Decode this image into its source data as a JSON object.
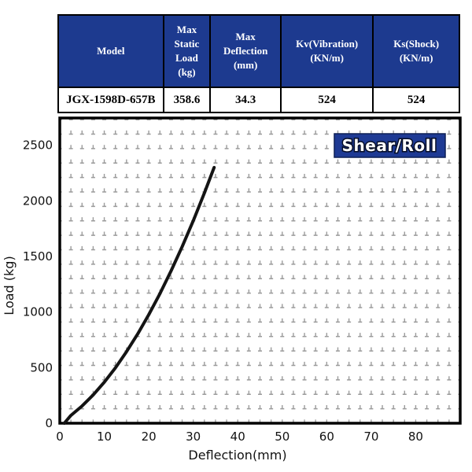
{
  "table": {
    "headers": [
      "Model",
      "Max\nStatic\nLoad\n(kg)",
      "Max\nDeflection\n(mm)",
      "Kv(Vibration)\n(KN/m)",
      "Ks(Shock)\n(KN/m)"
    ],
    "row": [
      "JGX-1598D-657B",
      "358.6",
      "34.3",
      "524",
      "524"
    ]
  },
  "chart_data": {
    "type": "line",
    "badge_title": "Shear/Roll",
    "xlabel": "Deflection(mm)",
    "ylabel": "Load (kg)",
    "xlim": [
      0,
      90
    ],
    "ylim": [
      0,
      2745
    ],
    "xticks": [
      0,
      10,
      20,
      30,
      40,
      50,
      60,
      70,
      80
    ],
    "yticks": [
      0,
      500,
      1000,
      1500,
      2000,
      2500
    ],
    "grid": {
      "style": "dashed",
      "x_step_mm": 2.5,
      "y_step_kg": 130
    },
    "legend_position": "none",
    "series": [
      {
        "name": "Shear/Roll load-deflection curve",
        "x": [
          1,
          2.5,
          5,
          7.5,
          10,
          12.5,
          15,
          17.5,
          20,
          22.5,
          25,
          27.5,
          30,
          32.5,
          34.7
        ],
        "y": [
          0,
          70,
          155,
          254,
          369,
          498,
          643,
          802,
          976,
          1165,
          1369,
          1587,
          1821,
          2070,
          2300
        ]
      }
    ]
  },
  "colors": {
    "table_header_bg": "#1d3a8f",
    "badge_bg": "#1e3a94",
    "badge_border": "#0d1f55",
    "grid": "#9b9b9b",
    "frame": "#000000",
    "curve": "#141414",
    "header_text": "#ffffff"
  }
}
